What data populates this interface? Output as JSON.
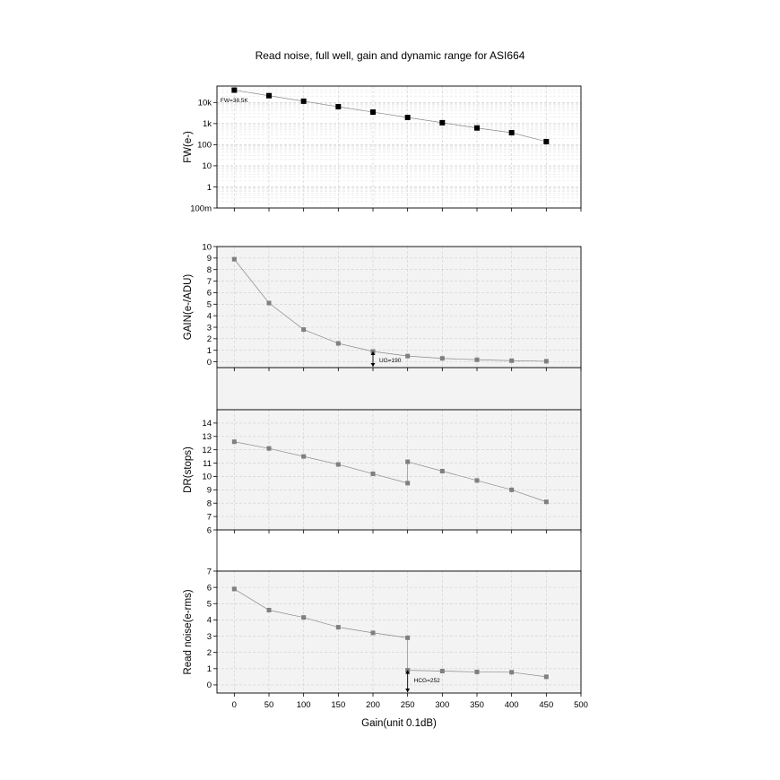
{
  "figure": {
    "title": "Read noise, full well, gain and dynamic range for ASI664",
    "xlabel": "Gain(unit 0.1dB)",
    "x_ticks": [
      0,
      50,
      100,
      150,
      200,
      250,
      300,
      350,
      400,
      450,
      500
    ],
    "xlim": [
      -25,
      500
    ]
  },
  "chart_data": [
    {
      "type": "line",
      "panel": "fw",
      "title": "",
      "xlabel": "",
      "ylabel": "FW(e-)",
      "y_scale": "log",
      "ylim": [
        0.1,
        60000
      ],
      "y_tick_values": [
        0.1,
        1,
        10,
        100,
        1000,
        10000
      ],
      "y_tick_labels": [
        "100m",
        "1",
        "10",
        "100",
        "1k",
        "10k"
      ],
      "grid": true,
      "marker_color": "#000000",
      "series": [
        {
          "x": [
            0,
            50,
            100,
            150,
            200,
            250,
            300,
            350,
            400,
            450
          ],
          "y": [
            38500,
            21000,
            11500,
            6300,
            3500,
            1950,
            1100,
            620,
            370,
            140
          ]
        }
      ],
      "annotations": [
        {
          "text": "FW=38.5K",
          "x": -20,
          "y": 15000
        }
      ]
    },
    {
      "type": "line",
      "panel": "gain",
      "title": "",
      "xlabel": "",
      "ylabel": "GAIN(e-/ADU)",
      "y_scale": "linear",
      "ylim": [
        -0.5,
        10
      ],
      "y_tick_values": [
        0,
        1,
        2,
        3,
        4,
        5,
        6,
        7,
        8,
        9,
        10
      ],
      "y_tick_labels": [
        "0",
        "1",
        "2",
        "3",
        "4",
        "5",
        "6",
        "7",
        "8",
        "9",
        "10"
      ],
      "grid": true,
      "marker_color": "#7f7f7f",
      "series": [
        {
          "x": [
            0,
            50,
            100,
            150,
            200,
            250,
            300,
            350,
            400,
            450
          ],
          "y": [
            8.9,
            5.1,
            2.8,
            1.6,
            0.9,
            0.5,
            0.3,
            0.18,
            0.1,
            0.05
          ]
        }
      ],
      "annotations": [
        {
          "text": "UG=190",
          "x": 200,
          "y": 0
        }
      ]
    },
    {
      "type": "line",
      "panel": "dr",
      "title": "",
      "xlabel": "",
      "ylabel": "DR(stops)",
      "y_scale": "linear",
      "ylim": [
        6,
        15
      ],
      "y_tick_values": [
        6,
        7,
        8,
        9,
        10,
        11,
        12,
        13,
        14
      ],
      "y_tick_labels": [
        "6",
        "7",
        "8",
        "9",
        "10",
        "11",
        "12",
        "13",
        "14"
      ],
      "grid": true,
      "marker_color": "#7f7f7f",
      "series": [
        {
          "x": [
            0,
            50,
            100,
            150,
            200,
            250,
            250,
            300,
            350,
            400,
            450
          ],
          "y": [
            12.6,
            12.1,
            11.5,
            10.9,
            10.2,
            9.5,
            11.1,
            10.4,
            9.7,
            9.0,
            8.1
          ]
        }
      ],
      "annotations": []
    },
    {
      "type": "line",
      "panel": "read-noise",
      "title": "",
      "xlabel": "Gain(unit 0.1dB)",
      "ylabel": "Read noise(e-rms)",
      "y_scale": "linear",
      "ylim": [
        -0.5,
        7
      ],
      "y_tick_values": [
        0,
        1,
        2,
        3,
        4,
        5,
        6,
        7
      ],
      "y_tick_labels": [
        "0",
        "1",
        "2",
        "3",
        "4",
        "5",
        "6",
        "7"
      ],
      "grid": true,
      "marker_color": "#7f7f7f",
      "series": [
        {
          "x": [
            0,
            50,
            100,
            150,
            200,
            250,
            250,
            300,
            350,
            400,
            450
          ],
          "y": [
            5.9,
            4.6,
            4.15,
            3.55,
            3.2,
            2.9,
            0.9,
            0.85,
            0.8,
            0.78,
            0.5
          ]
        }
      ],
      "annotations": [
        {
          "text": "HCG=252",
          "x": 252,
          "y": 0
        }
      ]
    }
  ]
}
